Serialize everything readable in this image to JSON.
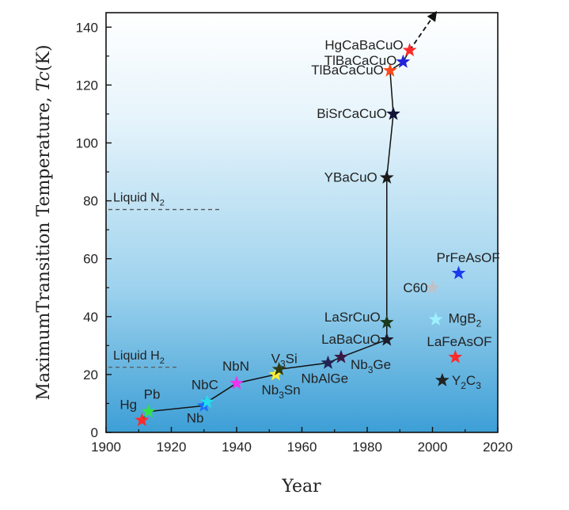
{
  "chart_data": {
    "type": "scatter",
    "title": "",
    "xlabel": "Year",
    "ylabel_prefix": "MaximumTransition Temperature, ",
    "ylabel_var": "Tc",
    "ylabel_unit": "(K)",
    "xlim": [
      1900,
      2020
    ],
    "ylim": [
      0,
      145
    ],
    "xticks": [
      1900,
      1920,
      1940,
      1960,
      1980,
      2000,
      2020
    ],
    "yticks": [
      0,
      20,
      40,
      60,
      80,
      100,
      120,
      140
    ],
    "grid": false,
    "background": "light blue vertical gradient",
    "reference_lines": [
      {
        "label_main": "Liquid N",
        "label_sub": "2",
        "y": 77,
        "x_range": [
          1900,
          1935
        ]
      },
      {
        "label_main": "Liquid H",
        "label_sub": "2",
        "y": 22.5,
        "x_range": [
          1900,
          1922
        ]
      }
    ],
    "points": [
      {
        "parts": [
          [
            "Hg",
            ""
          ]
        ],
        "x": 1911,
        "y": 4.2,
        "color": "#ff2a2a"
      },
      {
        "parts": [
          [
            "Pb",
            ""
          ]
        ],
        "x": 1913,
        "y": 7.2,
        "color": "#33e04a"
      },
      {
        "parts": [
          [
            "Nb",
            ""
          ]
        ],
        "x": 1930,
        "y": 9.2,
        "color": "#1a6cff"
      },
      {
        "parts": [
          [
            "NbC",
            ""
          ]
        ],
        "x": 1931,
        "y": 10.5,
        "color": "#22ddee"
      },
      {
        "parts": [
          [
            "NbN",
            ""
          ]
        ],
        "x": 1940,
        "y": 17,
        "color": "#ee33ee"
      },
      {
        "parts": [
          [
            "Nb",
            ""
          ],
          [
            "3",
            "sub"
          ],
          [
            "Sn",
            ""
          ]
        ],
        "x": 1952,
        "y": 20,
        "color": "#ffee33"
      },
      {
        "parts": [
          [
            "V",
            ""
          ],
          [
            "3",
            "sub"
          ],
          [
            "Si",
            ""
          ]
        ],
        "x": 1953,
        "y": 21.8,
        "color": "#2e3a12"
      },
      {
        "parts": [
          [
            "NbAlGe",
            ""
          ]
        ],
        "x": 1968,
        "y": 24,
        "color": "#222255"
      },
      {
        "parts": [
          [
            "Nb",
            ""
          ],
          [
            "3",
            "sub"
          ],
          [
            "Ge",
            ""
          ]
        ],
        "x": 1972,
        "y": 26,
        "color": "#3a1a44"
      },
      {
        "parts": [
          [
            "LaBaCuO",
            ""
          ]
        ],
        "x": 1986,
        "y": 32,
        "color": "#1c1c2a"
      },
      {
        "parts": [
          [
            "LaSrCuO",
            ""
          ]
        ],
        "x": 1986,
        "y": 38,
        "color": "#1c3a1c"
      },
      {
        "parts": [
          [
            "YBaCuO",
            ""
          ]
        ],
        "x": 1986,
        "y": 88,
        "color": "#1a1a1a"
      },
      {
        "parts": [
          [
            "BiSrCaCuO",
            ""
          ]
        ],
        "x": 1988,
        "y": 110,
        "color": "#14143a"
      },
      {
        "parts": [
          [
            "TlBaCaCuO",
            ""
          ]
        ],
        "x": 1987,
        "y": 125,
        "color": "#ff4a1a"
      },
      {
        "parts": [
          [
            "TlBaCaCuO",
            ""
          ]
        ],
        "x": 1991,
        "y": 128,
        "color": "#2222dd"
      },
      {
        "parts": [
          [
            "HgCaBaCuO",
            ""
          ]
        ],
        "x": 1993,
        "y": 132,
        "color": "#ff2a2a"
      },
      {
        "parts": [
          [
            "C60",
            ""
          ]
        ],
        "x": 2000,
        "y": 50,
        "color": "#c0c0c8"
      },
      {
        "parts": [
          [
            "PrFeAsOF",
            ""
          ]
        ],
        "x": 2008,
        "y": 55,
        "color": "#1a3aee"
      },
      {
        "parts": [
          [
            "MgB",
            ""
          ],
          [
            "2",
            "sub"
          ]
        ],
        "x": 2001,
        "y": 39,
        "color": "#9ef0ff"
      },
      {
        "parts": [
          [
            "LaFeAsOF",
            ""
          ]
        ],
        "x": 2007,
        "y": 26,
        "color": "#ff2a2a"
      },
      {
        "parts": [
          [
            "Y",
            ""
          ],
          [
            "2",
            "sub"
          ],
          [
            "C",
            ""
          ],
          [
            "3",
            "sub"
          ]
        ],
        "x": 2003,
        "y": 18,
        "color": "#222222"
      }
    ],
    "trend_line": {
      "points": [
        [
          1911,
          4.2
        ],
        [
          1913,
          7.2
        ],
        [
          1930,
          9.2
        ],
        [
          1931,
          10.5
        ],
        [
          1940,
          17
        ],
        [
          1952,
          20
        ],
        [
          1953,
          21.8
        ],
        [
          1968,
          24
        ],
        [
          1972,
          26
        ],
        [
          1986,
          32
        ],
        [
          1986,
          38
        ],
        [
          1986,
          88
        ],
        [
          1988,
          110
        ],
        [
          1987,
          125
        ],
        [
          1991,
          128
        ],
        [
          1993,
          132
        ]
      ],
      "arrow_to": [
        2001,
        145
      ]
    }
  }
}
